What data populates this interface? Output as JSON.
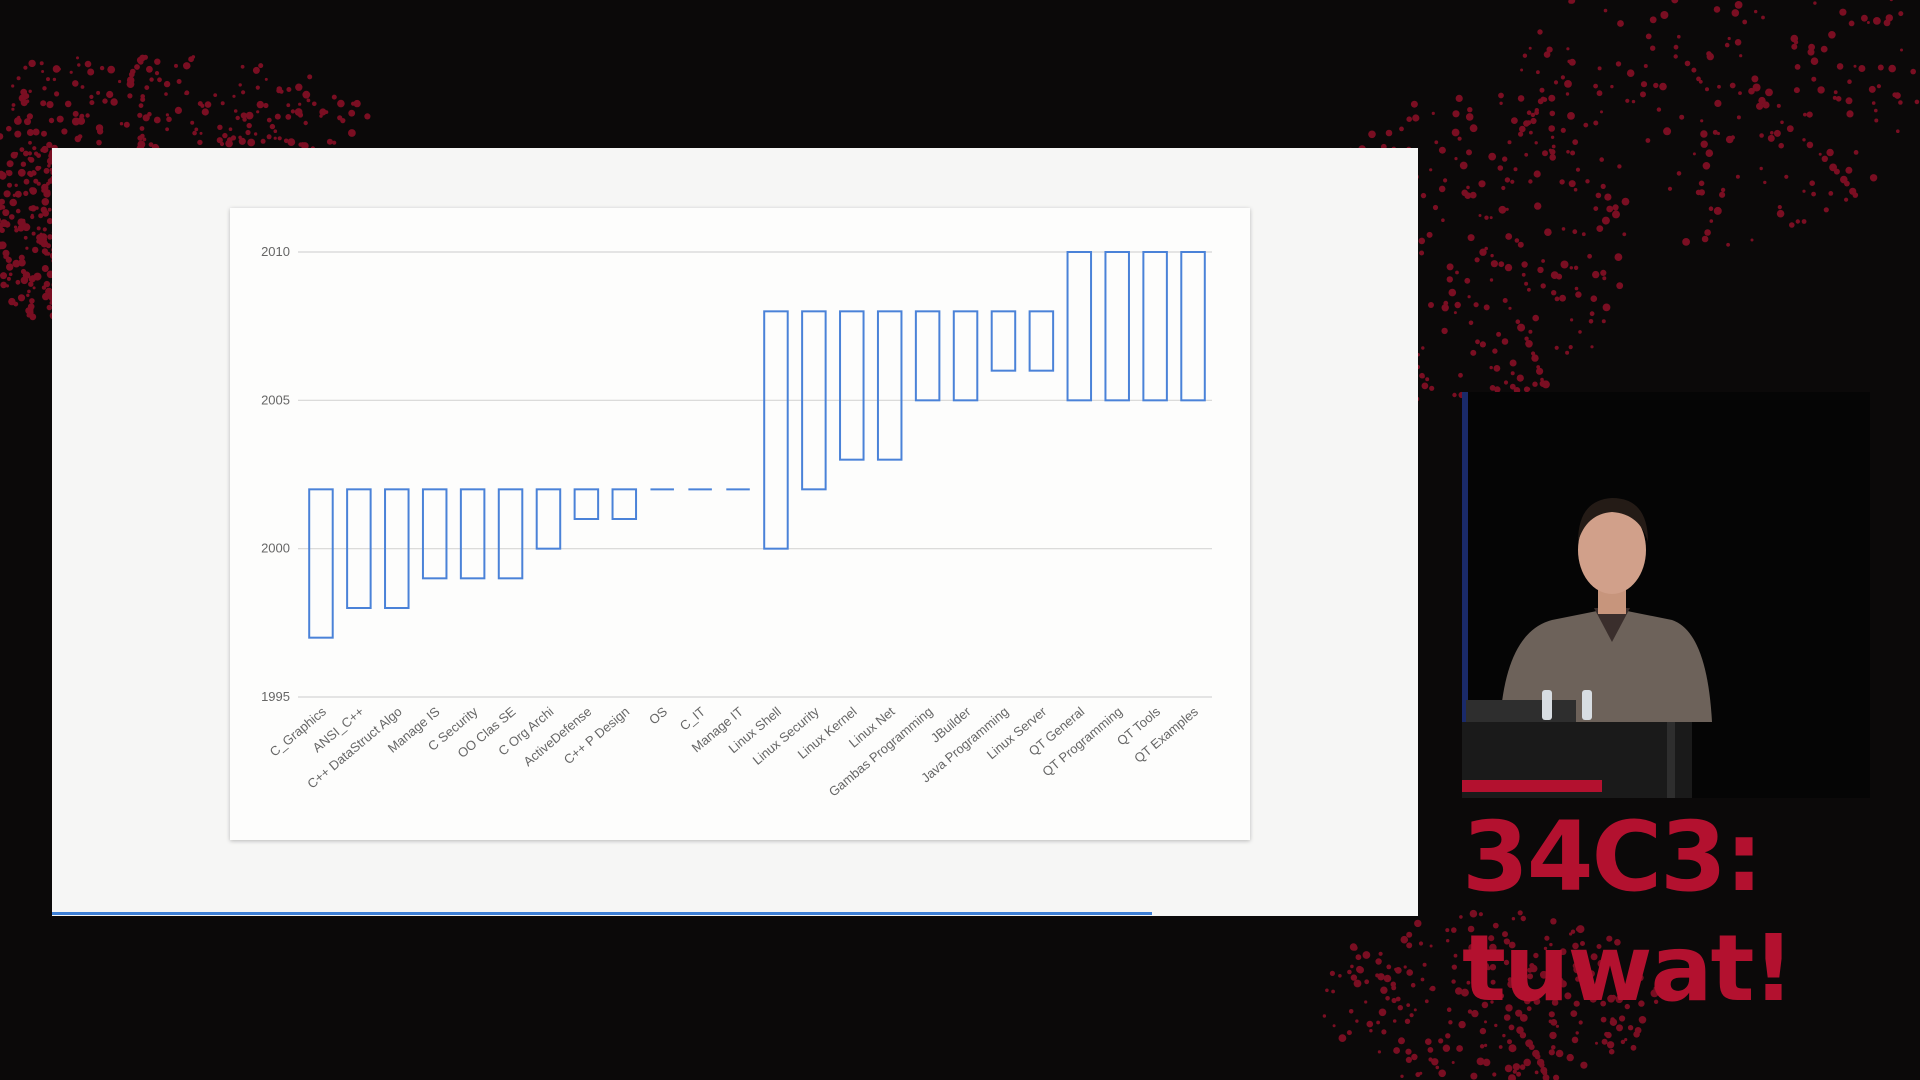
{
  "chart_data": {
    "type": "floating-bar",
    "title": "",
    "xlabel": "",
    "ylabel": "",
    "ylim": [
      1995,
      2010
    ],
    "yticks": [
      1995,
      2000,
      2005,
      2010
    ],
    "grid": true,
    "legend": "none",
    "bar_color": "#4a82d8",
    "categories": [
      "C_Graphics",
      "ANSI_C++",
      "C++ DataStruct Algo",
      "Manage IS",
      "C Security",
      "OO Clas SE",
      "C Org Archi",
      "ActiveDefense",
      "C++ P Design",
      "OS",
      "C_IT",
      "Manage IT",
      "Linux Shell",
      "Linux Security",
      "Linux Kernel",
      "Linux Net",
      "Gambas Programming",
      "JBuilder",
      "Java Programming",
      "Linux Server",
      "QT General",
      "QT Programming",
      "QT Tools",
      "QT Examples"
    ],
    "series": [
      {
        "ranges": [
          [
            1997,
            2002
          ],
          [
            1998,
            2002
          ],
          [
            1998,
            2002
          ],
          [
            1999,
            2002
          ],
          [
            1999,
            2002
          ],
          [
            1999,
            2002
          ],
          [
            2000,
            2002
          ],
          [
            2001,
            2002
          ],
          [
            2001,
            2002
          ],
          [
            2002,
            2002
          ],
          [
            2002,
            2002
          ],
          [
            2002,
            2002
          ],
          [
            2000,
            2008
          ],
          [
            2002,
            2008
          ],
          [
            2003,
            2008
          ],
          [
            2003,
            2008
          ],
          [
            2005,
            2008
          ],
          [
            2005,
            2008
          ],
          [
            2006,
            2008
          ],
          [
            2006,
            2008
          ],
          [
            2005,
            2010
          ],
          [
            2005,
            2010
          ],
          [
            2005,
            2010
          ],
          [
            2005,
            2010
          ]
        ]
      }
    ]
  },
  "branding": {
    "logo_line1": "34C3:",
    "logo_line2": "tuwat!",
    "logo_color": "#b3112f",
    "dot_color": "#7a0e22"
  }
}
